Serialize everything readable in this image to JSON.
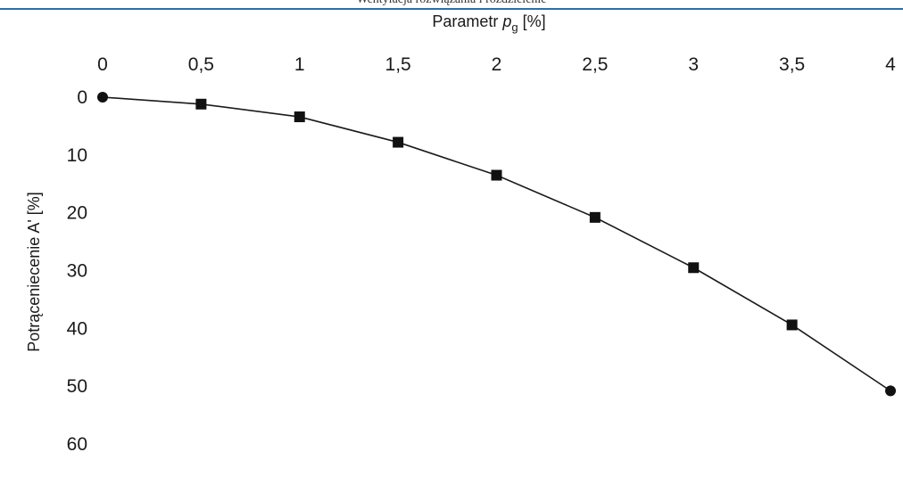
{
  "header": {
    "text": "Wentylacja rozwiązania i rozdzielenie"
  },
  "chart_data": {
    "type": "line",
    "xlabel_main": "Parametr ",
    "xlabel_sym": "p",
    "xlabel_sub": "g",
    "xlabel_unit": " [%]",
    "ylabel": "Potrąceniecenie A' [%]",
    "x_ticks": [
      "0",
      "0,5",
      "1",
      "1,5",
      "2",
      "2,5",
      "3",
      "3,5",
      "4"
    ],
    "y_ticks": [
      "0",
      "10",
      "20",
      "30",
      "40",
      "50",
      "60"
    ],
    "xlim": [
      0,
      4
    ],
    "ylim": [
      0,
      60
    ],
    "y_inverted": true,
    "x_axis_position": "top",
    "grid": false,
    "series": [
      {
        "x": [
          0,
          0.5,
          1,
          1.5,
          2,
          2.5,
          3,
          3.5,
          4
        ],
        "y": [
          0,
          1.2,
          3.4,
          7.8,
          13.5,
          20.8,
          29.5,
          39.4,
          50.8
        ]
      }
    ],
    "colors": {
      "line": "#1a1a1a",
      "marker": "#111111",
      "rule": "#2f6ea8"
    }
  }
}
